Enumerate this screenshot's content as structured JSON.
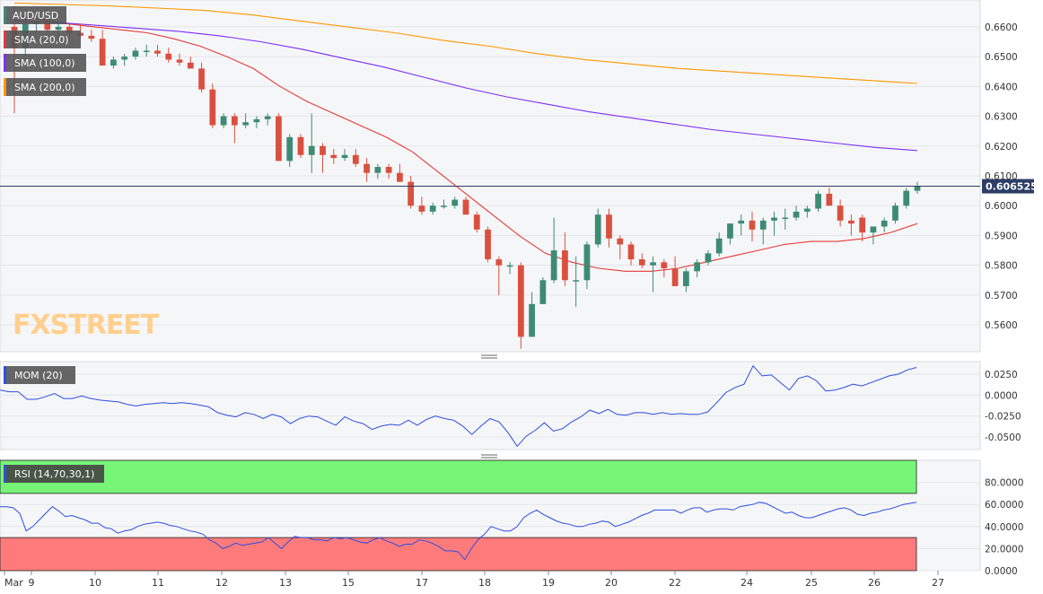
{
  "symbol": "AUD/USD",
  "brand": "FXSTREET",
  "colors": {
    "up": "#3d8b74",
    "down": "#d9503f",
    "sma20": "#e53935",
    "sma100": "#7b2ff7",
    "sma200": "#ff9800",
    "mom": "#2d4de0",
    "rsi": "#2d4de0",
    "rsi_over": "#77f577",
    "rsi_under": "#ff7b7b"
  },
  "chart_data": [
    {
      "type": "candlestick",
      "title": "AUD/USD",
      "ylim": [
        0.551,
        0.669
      ],
      "yticks": [
        0.56,
        0.57,
        0.58,
        0.59,
        0.6,
        0.61,
        0.62,
        0.63,
        0.64,
        0.65,
        0.66
      ],
      "ytick_labels": [
        "0.5600",
        "0.5700",
        "0.5800",
        "0.5900",
        "0.6000",
        "0.6100",
        "0.6200",
        "0.6300",
        "0.6400",
        "0.6500",
        "0.6600"
      ],
      "last_price": 0.606525,
      "last_price_label": "0.606525",
      "candles": [
        [
          0.66,
          0.667,
          0.631,
          0.653
        ],
        [
          0.653,
          0.666,
          0.65,
          0.661
        ],
        [
          0.661,
          0.664,
          0.658,
          0.662
        ],
        [
          0.662,
          0.666,
          0.658,
          0.659
        ],
        [
          0.659,
          0.662,
          0.656,
          0.66
        ],
        [
          0.66,
          0.661,
          0.655,
          0.658
        ],
        [
          0.658,
          0.661,
          0.656,
          0.657
        ],
        [
          0.657,
          0.659,
          0.655,
          0.656
        ],
        [
          0.656,
          0.659,
          0.647,
          0.647
        ],
        [
          0.647,
          0.65,
          0.646,
          0.649
        ],
        [
          0.649,
          0.651,
          0.647,
          0.65
        ],
        [
          0.65,
          0.653,
          0.649,
          0.652
        ],
        [
          0.652,
          0.654,
          0.65,
          0.652
        ],
        [
          0.652,
          0.654,
          0.65,
          0.651
        ],
        [
          0.651,
          0.653,
          0.648,
          0.649
        ],
        [
          0.649,
          0.651,
          0.647,
          0.648
        ],
        [
          0.648,
          0.65,
          0.646,
          0.646
        ],
        [
          0.646,
          0.648,
          0.638,
          0.639
        ],
        [
          0.639,
          0.641,
          0.626,
          0.627
        ],
        [
          0.627,
          0.631,
          0.626,
          0.63
        ],
        [
          0.63,
          0.631,
          0.621,
          0.627
        ],
        [
          0.627,
          0.631,
          0.626,
          0.628
        ],
        [
          0.628,
          0.63,
          0.626,
          0.629
        ],
        [
          0.629,
          0.631,
          0.627,
          0.63
        ],
        [
          0.63,
          0.631,
          0.615,
          0.615
        ],
        [
          0.615,
          0.624,
          0.613,
          0.623
        ],
        [
          0.623,
          0.624,
          0.616,
          0.617
        ],
        [
          0.617,
          0.631,
          0.611,
          0.62
        ],
        [
          0.62,
          0.621,
          0.611,
          0.617
        ],
        [
          0.617,
          0.619,
          0.614,
          0.616
        ],
        [
          0.616,
          0.619,
          0.615,
          0.617
        ],
        [
          0.617,
          0.619,
          0.613,
          0.614
        ],
        [
          0.614,
          0.616,
          0.608,
          0.611
        ],
        [
          0.611,
          0.614,
          0.609,
          0.613
        ],
        [
          0.613,
          0.614,
          0.609,
          0.611
        ],
        [
          0.611,
          0.614,
          0.608,
          0.608
        ],
        [
          0.608,
          0.61,
          0.599,
          0.6
        ],
        [
          0.6,
          0.603,
          0.597,
          0.598
        ],
        [
          0.598,
          0.601,
          0.597,
          0.6
        ],
        [
          0.6,
          0.602,
          0.599,
          0.6
        ],
        [
          0.6,
          0.603,
          0.599,
          0.602
        ],
        [
          0.602,
          0.603,
          0.597,
          0.597
        ],
        [
          0.597,
          0.598,
          0.591,
          0.592
        ],
        [
          0.592,
          0.593,
          0.581,
          0.582
        ],
        [
          0.582,
          0.583,
          0.57,
          0.58
        ],
        [
          0.58,
          0.581,
          0.577,
          0.58
        ],
        [
          0.58,
          0.581,
          0.552,
          0.556
        ],
        [
          0.556,
          0.571,
          0.556,
          0.567
        ],
        [
          0.567,
          0.576,
          0.567,
          0.575
        ],
        [
          0.575,
          0.596,
          0.574,
          0.585
        ],
        [
          0.585,
          0.591,
          0.573,
          0.575
        ],
        [
          0.575,
          0.583,
          0.566,
          0.575
        ],
        [
          0.575,
          0.588,
          0.572,
          0.587
        ],
        [
          0.587,
          0.599,
          0.586,
          0.597
        ],
        [
          0.597,
          0.599,
          0.586,
          0.589
        ],
        [
          0.589,
          0.59,
          0.582,
          0.587
        ],
        [
          0.587,
          0.588,
          0.58,
          0.582
        ],
        [
          0.582,
          0.584,
          0.579,
          0.58
        ],
        [
          0.58,
          0.583,
          0.571,
          0.581
        ],
        [
          0.581,
          0.582,
          0.576,
          0.579
        ],
        [
          0.579,
          0.583,
          0.573,
          0.573
        ],
        [
          0.573,
          0.579,
          0.571,
          0.578
        ],
        [
          0.578,
          0.582,
          0.576,
          0.581
        ],
        [
          0.581,
          0.585,
          0.58,
          0.584
        ],
        [
          0.584,
          0.591,
          0.583,
          0.589
        ],
        [
          0.589,
          0.594,
          0.587,
          0.594
        ],
        [
          0.594,
          0.597,
          0.59,
          0.595
        ],
        [
          0.595,
          0.598,
          0.588,
          0.592
        ],
        [
          0.592,
          0.596,
          0.587,
          0.595
        ],
        [
          0.595,
          0.598,
          0.59,
          0.596
        ],
        [
          0.596,
          0.599,
          0.592,
          0.596
        ],
        [
          0.596,
          0.6,
          0.595,
          0.598
        ],
        [
          0.598,
          0.6,
          0.596,
          0.599
        ],
        [
          0.599,
          0.605,
          0.598,
          0.604
        ],
        [
          0.604,
          0.606,
          0.6,
          0.6
        ],
        [
          0.6,
          0.602,
          0.593,
          0.595
        ],
        [
          0.595,
          0.597,
          0.59,
          0.594
        ],
        [
          0.596,
          0.597,
          0.588,
          0.591
        ],
        [
          0.591,
          0.592,
          0.587,
          0.593
        ],
        [
          0.593,
          0.596,
          0.591,
          0.595
        ],
        [
          0.595,
          0.601,
          0.594,
          0.6
        ],
        [
          0.6,
          0.606,
          0.599,
          0.605
        ],
        [
          0.605,
          0.608,
          0.604,
          0.6065
        ]
      ],
      "series": [
        {
          "name": "SMA (20,0)",
          "values": [
            0.664,
            0.6625,
            0.661,
            0.66,
            0.659,
            0.658,
            0.656,
            0.6535,
            0.65,
            0.646,
            0.64,
            0.635,
            0.631,
            0.627,
            0.623,
            0.618,
            0.611,
            0.604,
            0.597,
            0.59,
            0.584,
            0.581,
            0.579,
            0.578,
            0.578,
            0.579,
            0.581,
            0.583,
            0.585,
            0.587,
            0.588,
            0.588,
            0.589,
            0.591,
            0.594
          ]
        },
        {
          "name": "SMA (100,0)",
          "values": [
            0.662,
            0.6615,
            0.6605,
            0.6595,
            0.6585,
            0.657,
            0.655,
            0.6525,
            0.6495,
            0.6465,
            0.643,
            0.6395,
            0.6365,
            0.634,
            0.6315,
            0.6295,
            0.6275,
            0.6255,
            0.624,
            0.6225,
            0.621,
            0.6195,
            0.6185
          ]
        },
        {
          "name": "SMA (200,0)",
          "values": [
            0.668,
            0.6675,
            0.667,
            0.6663,
            0.6655,
            0.664,
            0.662,
            0.66,
            0.658,
            0.6555,
            0.6535,
            0.651,
            0.649,
            0.6475,
            0.646,
            0.645,
            0.644,
            0.643,
            0.642,
            0.641
          ]
        }
      ]
    },
    {
      "type": "line",
      "title": "MOM (20)",
      "ylim": [
        -0.065,
        0.04
      ],
      "yticks": [
        -0.05,
        -0.025,
        0,
        0.025
      ],
      "ytick_labels": [
        "-0.0500",
        "-0.0250",
        "0.0000",
        "0.0250"
      ],
      "series": [
        {
          "name": "MOM (20)",
          "values": [
            0.006,
            0.004,
            0.004,
            -0.005,
            -0.005,
            -0.002,
            0.002,
            -0.004,
            -0.004,
            -0.001,
            -0.004,
            -0.006,
            -0.007,
            -0.008,
            -0.011,
            -0.013,
            -0.011,
            -0.01,
            -0.009,
            -0.01,
            -0.009,
            -0.01,
            -0.012,
            -0.014,
            -0.021,
            -0.024,
            -0.026,
            -0.021,
            -0.023,
            -0.028,
            -0.023,
            -0.026,
            -0.034,
            -0.028,
            -0.025,
            -0.026,
            -0.031,
            -0.036,
            -0.026,
            -0.031,
            -0.034,
            -0.041,
            -0.037,
            -0.035,
            -0.036,
            -0.03,
            -0.036,
            -0.029,
            -0.025,
            -0.028,
            -0.03,
            -0.037,
            -0.047,
            -0.037,
            -0.028,
            -0.032,
            -0.045,
            -0.061,
            -0.049,
            -0.042,
            -0.033,
            -0.043,
            -0.04,
            -0.032,
            -0.026,
            -0.018,
            -0.022,
            -0.017,
            -0.023,
            -0.024,
            -0.021,
            -0.021,
            -0.023,
            -0.021,
            -0.023,
            -0.022,
            -0.023,
            -0.023,
            -0.02,
            -0.009,
            0.003,
            0.009,
            0.013,
            0.035,
            0.023,
            0.024,
            0.015,
            0.006,
            0.02,
            0.023,
            0.017,
            0.005,
            0.006,
            0.009,
            0.013,
            0.011,
            0.015,
            0.019,
            0.023,
            0.025,
            0.03,
            0.033
          ]
        }
      ]
    },
    {
      "type": "line",
      "title": "RSI (14,70,30,1)",
      "ylim": [
        0,
        100
      ],
      "yticks": [
        0,
        20,
        40,
        60,
        80
      ],
      "ytick_labels": [
        "0.0000",
        "20.0000",
        "40.0000",
        "60.0000",
        "80.0000"
      ],
      "bands": [
        {
          "from": 70,
          "to": 100,
          "color": "#77f577"
        },
        {
          "from": 0,
          "to": 30,
          "color": "#ff7b7b"
        }
      ],
      "series": [
        {
          "name": "RSI (14,70,30,1)",
          "values": [
            58,
            58,
            57,
            52,
            36,
            40,
            46,
            52,
            58,
            54,
            49,
            50,
            48,
            46,
            43,
            43,
            39,
            38,
            34,
            36,
            37,
            40,
            42,
            43,
            44,
            43,
            41,
            40,
            38,
            36,
            35,
            33,
            28,
            25,
            20,
            22,
            25,
            23,
            24,
            25,
            26,
            30,
            25,
            20,
            26,
            31,
            30,
            30,
            28,
            28,
            27,
            30,
            29,
            30,
            28,
            26,
            25,
            28,
            30,
            27,
            25,
            22,
            24,
            24,
            28,
            27,
            25,
            22,
            18,
            18,
            17,
            10,
            20,
            28,
            33,
            40,
            38,
            36,
            36,
            40,
            48,
            52,
            55,
            51,
            48,
            45,
            43,
            42,
            40,
            40,
            42,
            43,
            45,
            44,
            40,
            42,
            44,
            47,
            50,
            52,
            55,
            55,
            55,
            55,
            52,
            55,
            57,
            57,
            53,
            55,
            56,
            56,
            55,
            58,
            59,
            60,
            62,
            61,
            58,
            55,
            52,
            53,
            50,
            48,
            48,
            50,
            52,
            54,
            56,
            57,
            55,
            51,
            50,
            52,
            53,
            55,
            56,
            58,
            60,
            61,
            62
          ]
        }
      ]
    }
  ],
  "x_axis": {
    "labels": [
      "Mar",
      "9",
      "10",
      "11",
      "12",
      "13",
      "15",
      "17",
      "18",
      "19",
      "20",
      "22",
      "24",
      "25",
      "26",
      "27"
    ]
  },
  "legend": {
    "price": "AUD/USD",
    "sma20": "SMA (20,0)",
    "sma100": "SMA (100,0)",
    "sma200": "SMA (200,0)",
    "mom": "MOM (20)",
    "rsi": "RSI (14,70,30,1)"
  }
}
